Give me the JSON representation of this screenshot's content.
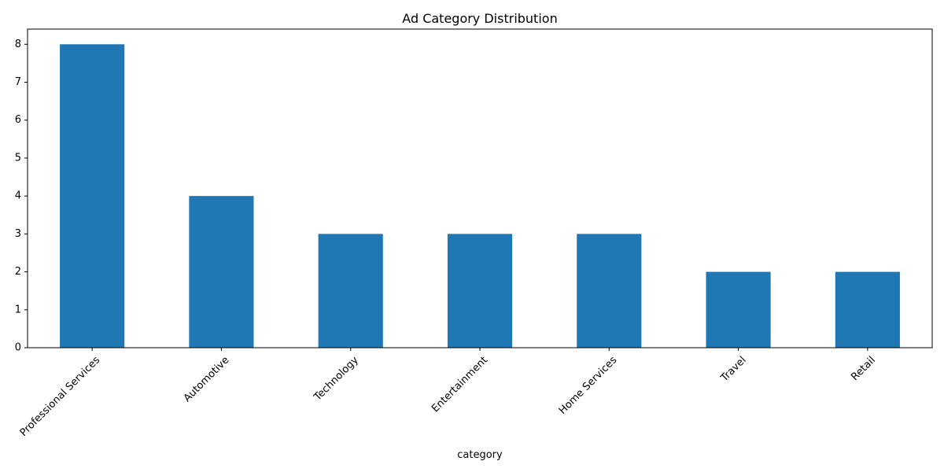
{
  "chart_data": {
    "type": "bar",
    "title": "Ad Category Distribution",
    "xlabel": "category",
    "ylabel": "",
    "categories": [
      "Professional Services",
      "Automotive",
      "Technology",
      "Entertainment",
      "Home Services",
      "Travel",
      "Retail"
    ],
    "values": [
      8,
      4,
      3,
      3,
      3,
      2,
      2
    ],
    "ylim": [
      0,
      8.4
    ],
    "yticks": [
      0,
      1,
      2,
      3,
      4,
      5,
      6,
      7,
      8
    ],
    "grid": false,
    "legend": "none",
    "bar_color": "#1f77b4",
    "x_tick_rotation": 45
  }
}
